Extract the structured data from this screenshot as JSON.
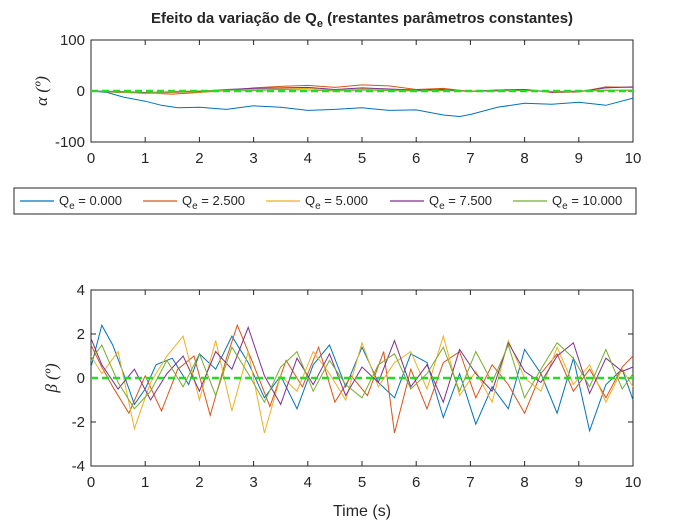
{
  "chart_data": {
    "type": "line",
    "title": "Efeito da variação de Q",
    "title_sub": "e",
    "title_rest": " (restantes parâmetros constantes)",
    "legend": {
      "placement": "between-plots",
      "entries": [
        {
          "label_main": "Q",
          "label_sub": "e",
          "label_rest": " = 0.000",
          "color": "#0072BD"
        },
        {
          "label_main": "Q",
          "label_sub": "e",
          "label_rest": " = 2.500",
          "color": "#D95319"
        },
        {
          "label_main": "Q",
          "label_sub": "e",
          "label_rest": " = 5.000",
          "color": "#EDB120"
        },
        {
          "label_main": "Q",
          "label_sub": "e",
          "label_rest": " = 7.500",
          "color": "#7E2F8E"
        },
        {
          "label_main": "Q",
          "label_sub": "e",
          "label_rest": " = 10.000",
          "color": "#77AC30"
        }
      ]
    },
    "reference_color": "#22DD22",
    "panels": [
      {
        "id": "alpha",
        "ylabel": "α (º)",
        "xlabel": "",
        "xlim": [
          0,
          10
        ],
        "ylim": [
          -100,
          100
        ],
        "xticks": [
          0,
          1,
          2,
          3,
          4,
          5,
          6,
          7,
          8,
          9,
          10
        ],
        "yticks": [
          -100,
          0,
          100
        ],
        "reference": {
          "x": [
            0,
            10
          ],
          "y": [
            0,
            0
          ]
        },
        "series": [
          {
            "color": "#0072BD",
            "x": [
              0,
              0.3,
              0.6,
              1,
              1.3,
              1.6,
              2,
              2.5,
              3,
              3.5,
              4,
              4.5,
              5,
              5.5,
              6,
              6.5,
              6.8,
              7,
              7.5,
              8,
              8.5,
              9,
              9.5,
              10
            ],
            "y": [
              0,
              -3,
              -12,
              -20,
              -28,
              -33,
              -32,
              -36,
              -29,
              -32,
              -38,
              -36,
              -33,
              -38,
              -37,
              -47,
              -50,
              -46,
              -32,
              -24,
              -26,
              -22,
              -28,
              -14
            ]
          },
          {
            "color": "#D95319",
            "x": [
              0,
              0.5,
              1,
              1.5,
              2,
              2.5,
              3,
              3.5,
              4,
              4.5,
              5,
              5.5,
              6,
              6.5,
              7,
              7.5,
              8,
              8.5,
              9,
              9.5,
              10
            ],
            "y": [
              0,
              -3,
              -4,
              -6,
              -3,
              1,
              6,
              9,
              11,
              7,
              12,
              10,
              3,
              5,
              -1,
              1,
              3,
              -3,
              -2,
              8,
              7
            ]
          },
          {
            "color": "#EDB120",
            "x": [
              0,
              0.5,
              1,
              1.5,
              2,
              2.5,
              3,
              3.5,
              4,
              4.5,
              5,
              5.5,
              6,
              6.5,
              7,
              7.5,
              8,
              8.5,
              9,
              9.5,
              10
            ],
            "y": [
              0,
              -2,
              -5,
              -3,
              -2,
              2,
              3,
              4,
              5,
              1,
              4,
              3,
              1,
              2,
              0,
              1,
              2,
              -2,
              -1,
              2,
              1
            ]
          },
          {
            "color": "#7E2F8E",
            "x": [
              0,
              0.5,
              1,
              1.5,
              2,
              2.5,
              3,
              3.5,
              4,
              4.5,
              5,
              5.5,
              6,
              6.5,
              7,
              7.5,
              8,
              8.5,
              9,
              9.5,
              10
            ],
            "y": [
              0,
              -1,
              -3,
              -2,
              -1,
              3,
              5,
              6,
              7,
              3,
              6,
              4,
              2,
              3,
              -1,
              2,
              3,
              -2,
              -1,
              6,
              8
            ]
          },
          {
            "color": "#77AC30",
            "x": [
              0,
              0.5,
              1,
              1.5,
              2,
              2.5,
              3,
              3.5,
              4,
              4.5,
              5,
              5.5,
              6,
              6.5,
              7,
              7.5,
              8,
              8.5,
              9,
              9.5,
              10
            ],
            "y": [
              0,
              -2,
              -4,
              -1,
              0,
              2,
              1,
              3,
              2,
              0,
              2,
              1,
              0,
              1,
              -1,
              0,
              1,
              -1,
              0,
              1,
              2
            ]
          }
        ]
      },
      {
        "id": "beta",
        "ylabel": "β (º)",
        "xlabel": "Time (s)",
        "xlim": [
          0,
          10
        ],
        "ylim": [
          -4,
          4
        ],
        "xticks": [
          0,
          1,
          2,
          3,
          4,
          5,
          6,
          7,
          8,
          9,
          10
        ],
        "yticks": [
          -4,
          -2,
          0,
          2,
          4
        ],
        "reference": {
          "x": [
            0,
            10
          ],
          "y": [
            0,
            0
          ]
        },
        "series": [
          {
            "color": "#0072BD",
            "x": [
              0,
              0.2,
              0.4,
              0.6,
              0.8,
              1,
              1.2,
              1.5,
              1.8,
              2,
              2.3,
              2.6,
              2.9,
              3.2,
              3.5,
              3.8,
              4.1,
              4.4,
              4.7,
              5,
              5.3,
              5.6,
              5.9,
              6.2,
              6.5,
              6.8,
              7.1,
              7.4,
              7.7,
              8,
              8.3,
              8.6,
              8.9,
              9.2,
              9.5,
              9.8,
              10
            ],
            "y": [
              0.5,
              2.4,
              1.5,
              0.2,
              -1.2,
              -0.5,
              0.6,
              0.9,
              -0.3,
              1.1,
              0.4,
              1.9,
              0.7,
              -0.9,
              0.1,
              -1.4,
              0.6,
              1.5,
              -0.4,
              1.4,
              -0.2,
              -0.9,
              1.1,
              0.7,
              -1.8,
              0.2,
              -2.1,
              -0.4,
              -1.4,
              1.3,
              0.2,
              -1.6,
              0.9,
              -2.4,
              -0.3,
              0.4,
              -1.0
            ]
          },
          {
            "color": "#D95319",
            "x": [
              0,
              0.2,
              0.4,
              0.7,
              1,
              1.3,
              1.6,
              1.9,
              2.2,
              2.5,
              2.7,
              3,
              3.3,
              3.6,
              3.9,
              4.2,
              4.5,
              4.8,
              5.1,
              5.4,
              5.6,
              5.9,
              6.2,
              6.5,
              6.8,
              7.1,
              7.4,
              7.7,
              8,
              8.3,
              8.6,
              8.9,
              9.2,
              9.5,
              9.8,
              10
            ],
            "y": [
              1.5,
              0.5,
              -0.4,
              -1.6,
              0.1,
              -1.5,
              0.4,
              1.0,
              -1.7,
              0.9,
              2.4,
              0.6,
              -1.3,
              0.8,
              -0.4,
              1.4,
              -1.1,
              0.1,
              -0.8,
              1.2,
              -2.5,
              0.4,
              -1.4,
              0.7,
              1.2,
              -0.9,
              0.6,
              -0.3,
              -1.6,
              0.2,
              1.1,
              -0.6,
              0.4,
              -0.9,
              0.5,
              1.0
            ]
          },
          {
            "color": "#EDB120",
            "x": [
              0,
              0.2,
              0.5,
              0.8,
              1.1,
              1.4,
              1.7,
              2,
              2.3,
              2.6,
              2.9,
              3.2,
              3.5,
              3.8,
              4.1,
              4.4,
              4.7,
              5,
              5.3,
              5.6,
              5.9,
              6.2,
              6.5,
              6.8,
              7.1,
              7.4,
              7.7,
              8,
              8.3,
              8.6,
              8.9,
              9.2,
              9.5,
              9.8,
              10
            ],
            "y": [
              1.0,
              0.2,
              1.2,
              -2.3,
              -0.2,
              1.0,
              1.9,
              -1.0,
              1.7,
              -1.5,
              1.2,
              -2.5,
              0.1,
              -0.6,
              1.2,
              0.2,
              -1.0,
              1.6,
              -0.4,
              0.7,
              1.2,
              -0.5,
              1.9,
              -0.8,
              0.3,
              -1.1,
              1.7,
              0.0,
              -0.6,
              1.4,
              -0.3,
              0.6,
              -1.1,
              0.4,
              -0.4
            ]
          },
          {
            "color": "#7E2F8E",
            "x": [
              0,
              0.2,
              0.5,
              0.8,
              1.1,
              1.4,
              1.7,
              2,
              2.3,
              2.6,
              2.9,
              3.2,
              3.5,
              3.8,
              4.1,
              4.4,
              4.7,
              5,
              5.3,
              5.6,
              5.9,
              6.2,
              6.5,
              6.8,
              7.1,
              7.4,
              7.7,
              8,
              8.3,
              8.6,
              8.9,
              9.2,
              9.5,
              9.8,
              10
            ],
            "y": [
              1.8,
              0.6,
              -0.5,
              0.4,
              -1.0,
              0.2,
              1.0,
              -0.6,
              1.2,
              0.4,
              2.3,
              0.1,
              -1.2,
              0.9,
              -0.3,
              1.1,
              -0.8,
              0.5,
              -0.2,
              1.7,
              -0.4,
              0.6,
              -1.1,
              1.3,
              0.2,
              -0.6,
              1.6,
              0.3,
              -0.2,
              1.0,
              1.6,
              -0.7,
              0.9,
              0.3,
              0.5
            ]
          },
          {
            "color": "#77AC30",
            "x": [
              0,
              0.2,
              0.5,
              0.8,
              1.1,
              1.4,
              1.7,
              2,
              2.3,
              2.6,
              2.9,
              3.2,
              3.5,
              3.8,
              4.1,
              4.4,
              4.7,
              5,
              5.3,
              5.6,
              5.9,
              6.2,
              6.5,
              6.8,
              7.1,
              7.4,
              7.7,
              8,
              8.3,
              8.6,
              8.9,
              9.2,
              9.5,
              9.8,
              10
            ],
            "y": [
              0.8,
              1.5,
              -0.2,
              -1.4,
              -0.6,
              0.8,
              -0.4,
              1.1,
              -0.8,
              1.4,
              0.2,
              -1.1,
              0.5,
              1.2,
              -0.6,
              0.8,
              -0.3,
              -0.9,
              0.6,
              1.1,
              -0.5,
              0.2,
              1.4,
              -0.6,
              1.2,
              -0.2,
              1.5,
              -0.9,
              0.4,
              1.6,
              0.9,
              -0.4,
              1.3,
              -0.5,
              0.2
            ]
          }
        ]
      }
    ]
  }
}
